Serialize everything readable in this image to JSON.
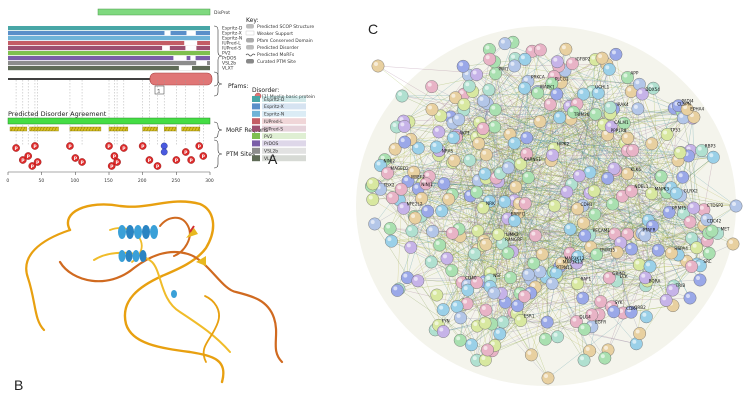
{
  "panels": {
    "a": {
      "letter": "A",
      "top_bar_label": "DisProt",
      "tracks": [
        {
          "label": "Espritz-D",
          "color": "#48a6a6"
        },
        {
          "label": "Espritz-X",
          "color": "#5a8fc9"
        },
        {
          "label": "Espritz-N",
          "color": "#6fb3d7"
        },
        {
          "label": "IUPred-L",
          "color": "#c45d65"
        },
        {
          "label": "IUPred-S",
          "color": "#9c5070"
        },
        {
          "label": "PV2",
          "color": "#7fbf4f"
        },
        {
          "label": "PrDOS",
          "color": "#7a5ea8"
        },
        {
          "label": "VSL2b",
          "color": "#8c8c8c"
        },
        {
          "label": "VLXT",
          "color": "#5f6b57"
        }
      ],
      "key_title": "Key:",
      "key_items": [
        "Predicted SCOP Structure",
        "Weaker Support",
        "Pfam Conserved Domain",
        "Predicted Disorder",
        "Predicted MoRFs",
        "Curated PTM Site"
      ],
      "pfams_label": "Pfams:",
      "pfam_entry": "[1] Myelin basic protein",
      "pfam_box_number": "1",
      "disorder_title": "Disorder:",
      "disorder_items": [
        {
          "label": "Espritz-D",
          "color": "#48a6a6"
        },
        {
          "label": "Espritz-X",
          "color": "#5a8fc9"
        },
        {
          "label": "Espritz-N",
          "color": "#6fb3d7"
        },
        {
          "label": "IUPred-L",
          "color": "#c45d65"
        },
        {
          "label": "IUPred-S",
          "color": "#9c5070"
        },
        {
          "label": "PV2",
          "color": "#7fbf4f"
        },
        {
          "label": "PrDOS",
          "color": "#7a5ea8"
        },
        {
          "label": "VSL2b",
          "color": "#8c8c8c"
        },
        {
          "label": "VLXT",
          "color": "#5f6b57"
        }
      ],
      "agreement_label": "Predicted Disorder Agreement",
      "morf_label": "MoRF Regions",
      "ptm_label": "PTM Sites",
      "ptm_marker_red": "P",
      "ptm_marker_blue": "G",
      "axis_ticks": [
        "0",
        "50",
        "100",
        "150",
        "200",
        "250",
        "300"
      ]
    },
    "b": {
      "letter": "B"
    },
    "c": {
      "letter": "C",
      "labels": [
        "PTAFR",
        "CLSPN",
        "PIM1",
        "LIMK2",
        "RBP3",
        "IGFBP2",
        "IRAK4",
        "NINJ1",
        "BORA",
        "TBX2",
        "GLRX2",
        "EPHA4",
        "CD40",
        "HIPK2",
        "TRIM26",
        "UCHL1",
        "PTPN11",
        "CDK7",
        "MAP3K13",
        "PADI4",
        "ERRFI1",
        "NDEL1",
        "PRMT5",
        "PECAM1",
        "KLK6",
        "GRB2",
        "MAP3K12",
        "RANGRF",
        "NSF",
        "MAPK1",
        "PPP1R8",
        "DDX54",
        "MET",
        "TRIM15",
        "TRIB",
        "NINJ2",
        "MYEF2",
        "MAGED2",
        "CTDSP2",
        "CARNS1",
        "NRK",
        "SRC",
        "NFE2L2",
        "CDC42",
        "TP53",
        "EGFR",
        "APP",
        "CALM1",
        "RAF1",
        "MAPK3",
        "AKT1",
        "PLCG1",
        "NRAS",
        "FYN",
        "LCK",
        "SYK",
        "GRIN1",
        "DLG4",
        "PRKCA",
        "ESR1",
        "HSPA4",
        "CDH1"
      ]
    }
  }
}
